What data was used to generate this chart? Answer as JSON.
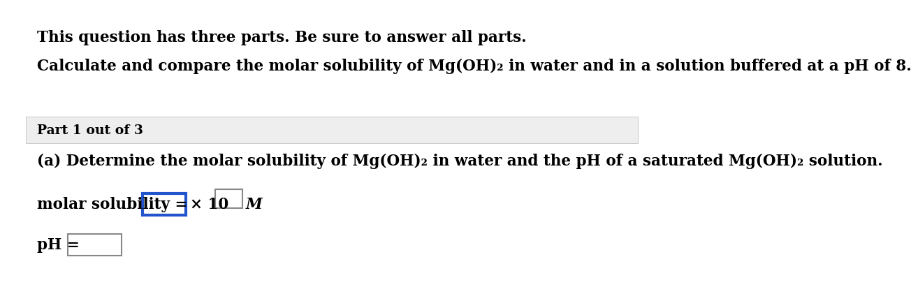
{
  "bg_color": "#ffffff",
  "line1": "This question has three parts. Be sure to answer all parts.",
  "line2": "Calculate and compare the molar solubility of Mg(OH)₂ in water and in a solution buffered at a pH of 8.",
  "part_box_bg": "#eeeeee",
  "part_box_border": "#cccccc",
  "part_label": "Part 1 out of 3",
  "part_a_text": "(a) Determine the molar solubility of Mg(OH)₂ in water and the pH of a saturated Mg(OH)₂ solution.",
  "molar_label": "molar solubility = ",
  "times_10": "× 10",
  "M_label": "M",
  "pH_label": "pH = ",
  "box1_color": "#2255cc",
  "box2_color": "#888888",
  "box3_color": "#888888",
  "font_size": 15.5,
  "font_size_part": 13.5
}
